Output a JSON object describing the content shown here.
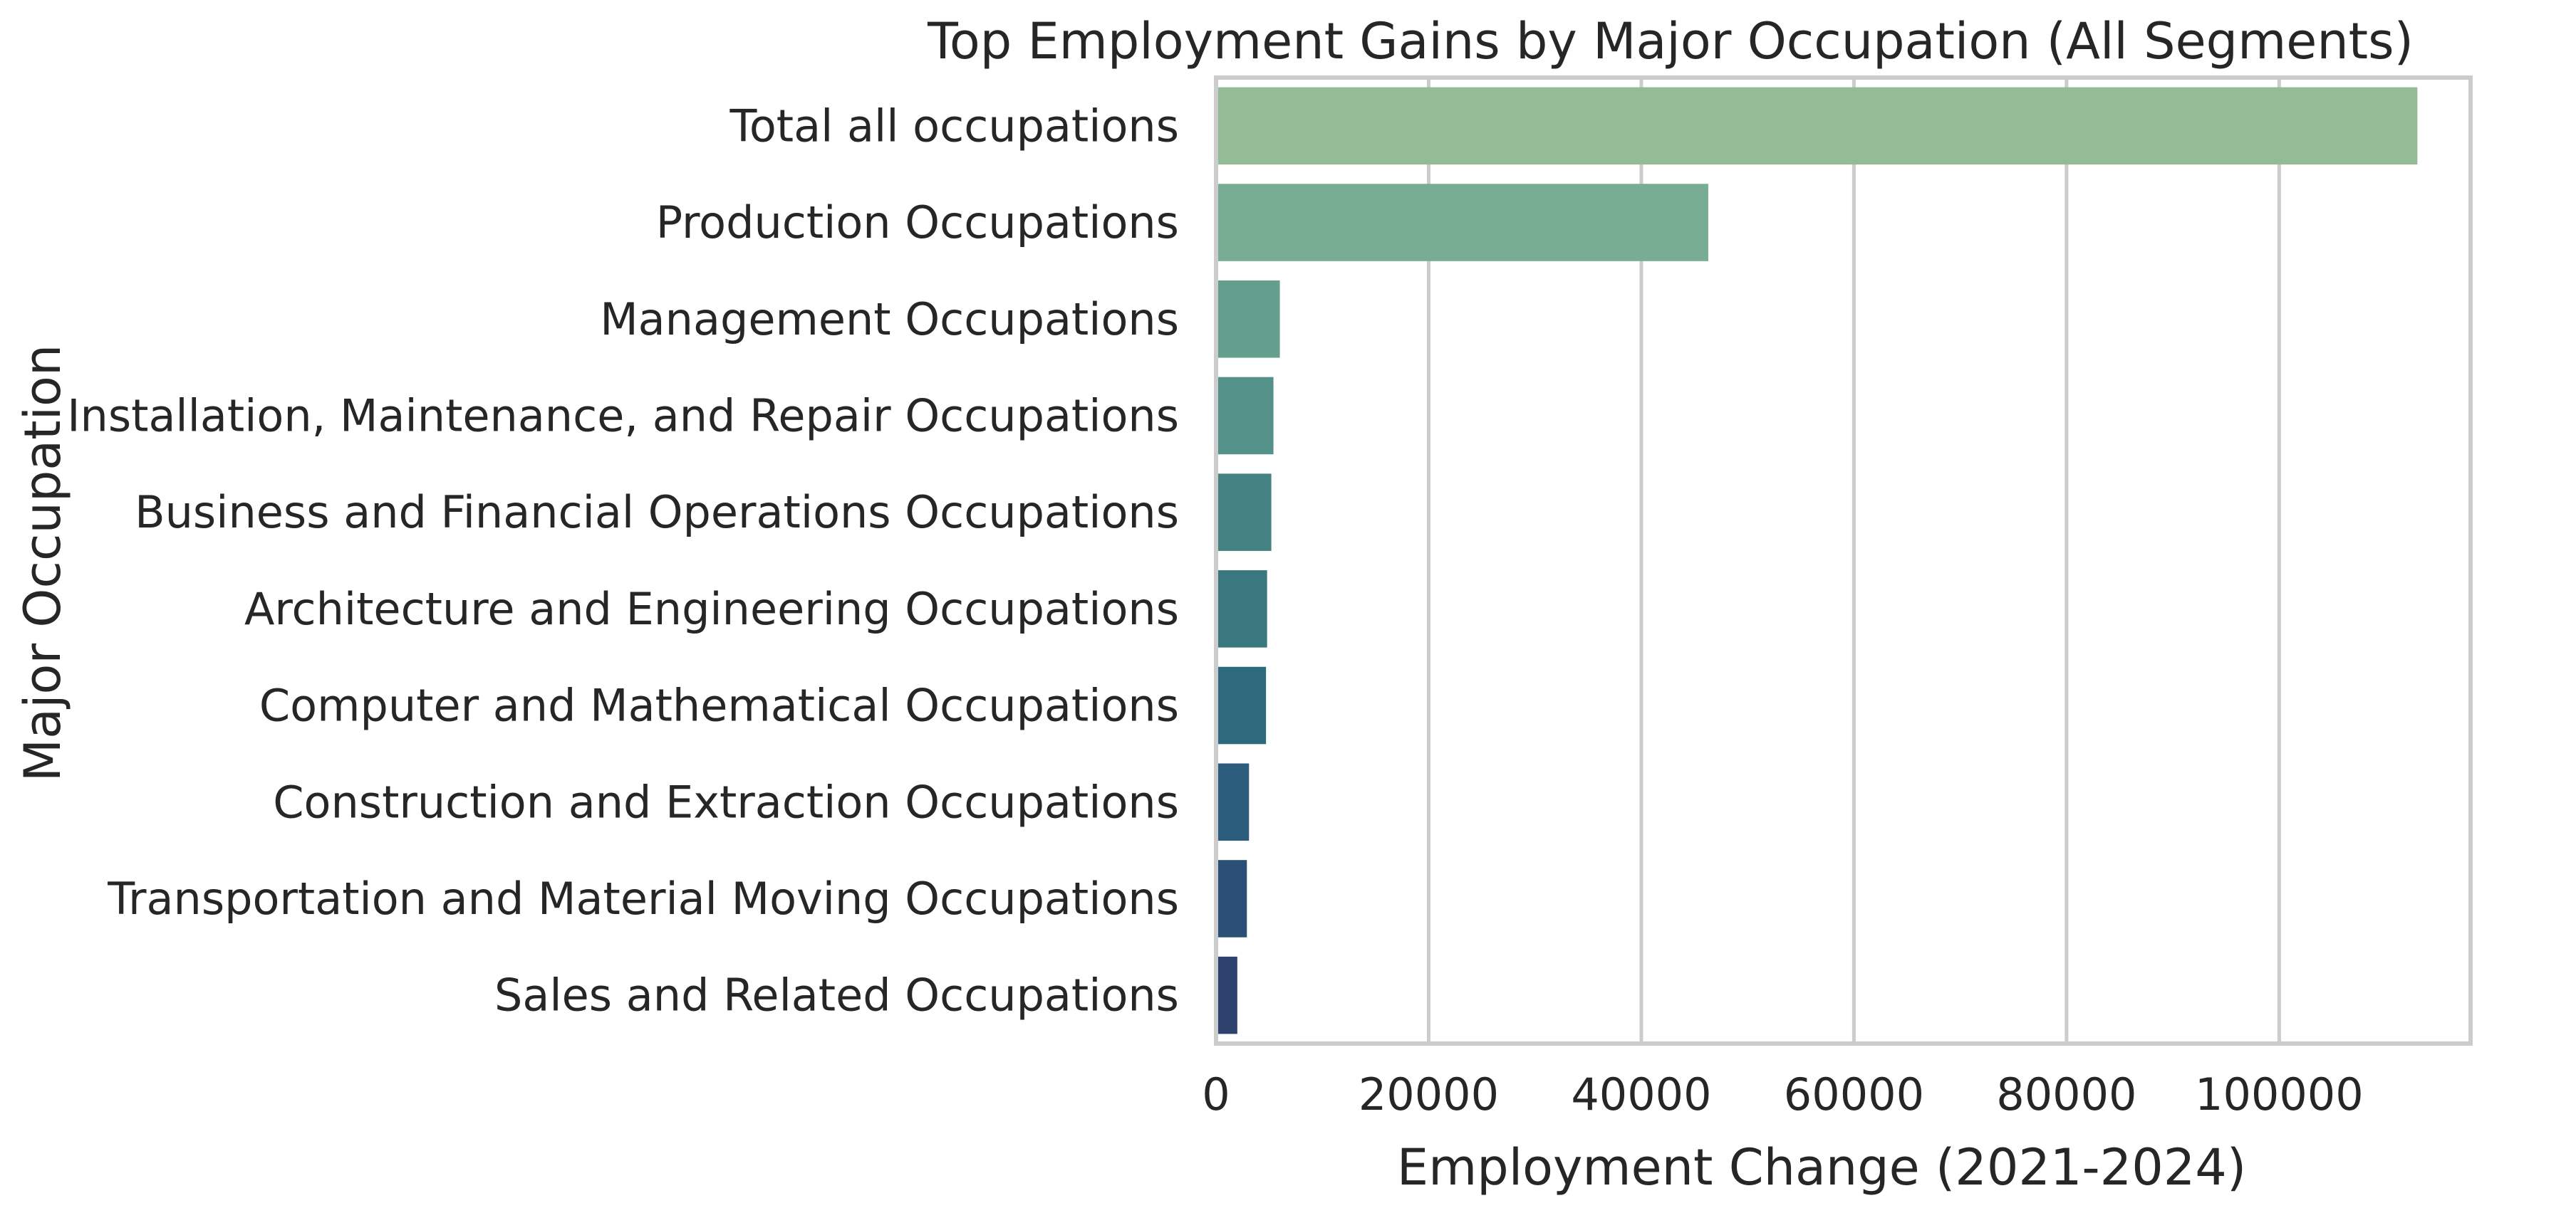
{
  "chart_data": {
    "type": "bar",
    "orientation": "horizontal",
    "title": "Top Employment Gains by Major Occupation (All Segments)",
    "xlabel": "Employment Change (2021-2024)",
    "ylabel": "Major Occupation",
    "categories": [
      "Total all occupations",
      "Production Occupations",
      "Management Occupations",
      "Installation, Maintenance, and Repair Occupations",
      "Business and Financial Operations Occupations",
      "Architecture and Engineering Occupations",
      "Computer and Mathematical Occupations",
      "Construction and Extraction Occupations",
      "Transportation and Material Moving Occupations",
      "Sales and Related Occupations"
    ],
    "values": [
      113000,
      46300,
      6000,
      5400,
      5200,
      4800,
      4700,
      3100,
      2900,
      2000
    ],
    "colors": [
      "#93bc96",
      "#78ad93",
      "#649f8e",
      "#549188",
      "#448382",
      "#3a7880",
      "#2e6a7e",
      "#2c5d7c",
      "#2c4f76",
      "#2d426c"
    ],
    "xlim": [
      0,
      118000
    ],
    "xticks": [
      0,
      20000,
      40000,
      60000,
      80000,
      100000
    ],
    "xtick_labels": [
      "0",
      "20000",
      "40000",
      "60000",
      "80000",
      "100000"
    ],
    "grid": true,
    "grid_axis": "x",
    "legend": "none"
  }
}
